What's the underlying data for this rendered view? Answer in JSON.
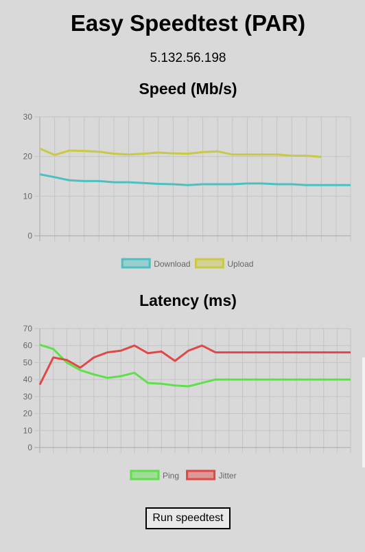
{
  "app": {
    "title": "Easy Speedtest (PAR)",
    "ip_address": "5.132.56.198"
  },
  "controls": {
    "run_label": "Run speedtest"
  },
  "chart_data": [
    {
      "id": "speed",
      "type": "line",
      "title": "Speed (Mb/s)",
      "x": [
        1,
        2,
        3,
        4,
        5,
        6,
        7,
        8,
        9,
        10,
        11,
        12,
        13,
        14,
        15,
        16,
        17,
        18,
        19,
        20,
        21,
        22
      ],
      "ylim": [
        0,
        30
      ],
      "yticks": [
        0,
        10,
        20,
        30
      ],
      "grid": true,
      "legend": "bottom",
      "series": [
        {
          "name": "Download",
          "color": "#4bc0c0",
          "values": [
            15.5,
            14.8,
            14.0,
            13.8,
            13.8,
            13.5,
            13.5,
            13.3,
            13.1,
            13.0,
            12.8,
            13.0,
            13.0,
            13.0,
            13.2,
            13.2,
            13.0,
            13.0,
            12.8,
            12.8,
            12.8,
            12.8
          ]
        },
        {
          "name": "Upload",
          "color": "#c9c945",
          "values": [
            22.0,
            20.4,
            21.5,
            21.4,
            21.2,
            20.7,
            20.5,
            20.7,
            21.0,
            20.8,
            20.7,
            21.1,
            21.3,
            20.5,
            20.5,
            20.5,
            20.5,
            20.2,
            20.2,
            19.9,
            null,
            null
          ]
        }
      ]
    },
    {
      "id": "latency",
      "type": "line",
      "title": "Latency (ms)",
      "x": [
        1,
        2,
        3,
        4,
        5,
        6,
        7,
        8,
        9,
        10,
        11,
        12,
        13,
        14,
        15,
        16,
        17,
        18,
        19,
        20,
        21,
        22,
        23,
        24
      ],
      "ylim": [
        0,
        70
      ],
      "yticks": [
        0,
        10,
        20,
        30,
        40,
        50,
        60,
        70
      ],
      "grid": true,
      "legend": "bottom",
      "series": [
        {
          "name": "Ping",
          "color": "#5ee04a",
          "values": [
            60.5,
            58,
            50,
            45.5,
            43,
            41,
            42,
            44,
            38,
            37.5,
            36.5,
            36,
            38,
            40,
            40,
            40,
            40,
            40,
            40,
            40,
            40,
            40,
            40,
            40
          ]
        },
        {
          "name": "Jitter",
          "color": "#e04848",
          "values": [
            37,
            53,
            51.5,
            47,
            53,
            56,
            57,
            60,
            55.5,
            56.5,
            51,
            57,
            60,
            56,
            56,
            56,
            56,
            56,
            56,
            56,
            56,
            56,
            56,
            56
          ]
        }
      ]
    }
  ]
}
